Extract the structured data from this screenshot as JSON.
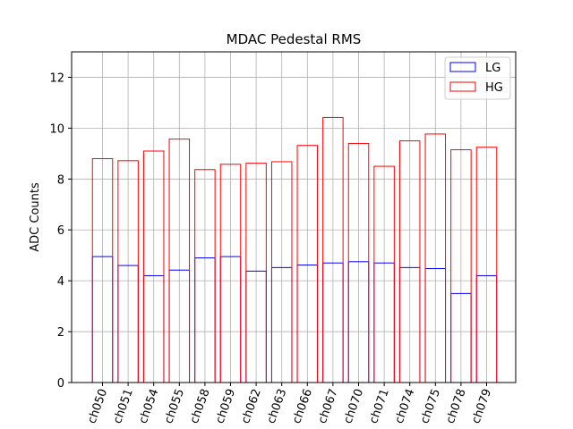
{
  "chart_data": {
    "type": "bar",
    "title": "MDAC Pedestal RMS",
    "xlabel": "",
    "ylabel": "ADC Counts",
    "ylim": [
      0,
      13
    ],
    "yticks": [
      "0",
      "2",
      "4",
      "6",
      "8",
      "10",
      "12"
    ],
    "grid": true,
    "legend_position": "top-right",
    "categories": [
      "ch050",
      "ch051",
      "ch054",
      "ch055",
      "ch058",
      "ch059",
      "ch062",
      "ch063",
      "ch066",
      "ch067",
      "ch070",
      "ch071",
      "ch074",
      "ch075",
      "ch078",
      "ch079"
    ],
    "series": [
      {
        "name": "LG",
        "color": "#0000ff",
        "style": "outline",
        "values": [
          4.95,
          4.6,
          4.2,
          4.42,
          4.9,
          4.95,
          4.38,
          4.52,
          4.62,
          4.7,
          4.75,
          4.7,
          4.52,
          4.48,
          3.5,
          4.2
        ]
      },
      {
        "name": "HG",
        "color": "#ff0000",
        "style": "outline",
        "values": [
          8.8,
          8.72,
          9.1,
          9.57,
          8.37,
          8.58,
          8.62,
          8.68,
          9.32,
          10.42,
          9.4,
          8.5,
          9.5,
          9.77,
          9.15,
          9.25
        ]
      }
    ]
  }
}
